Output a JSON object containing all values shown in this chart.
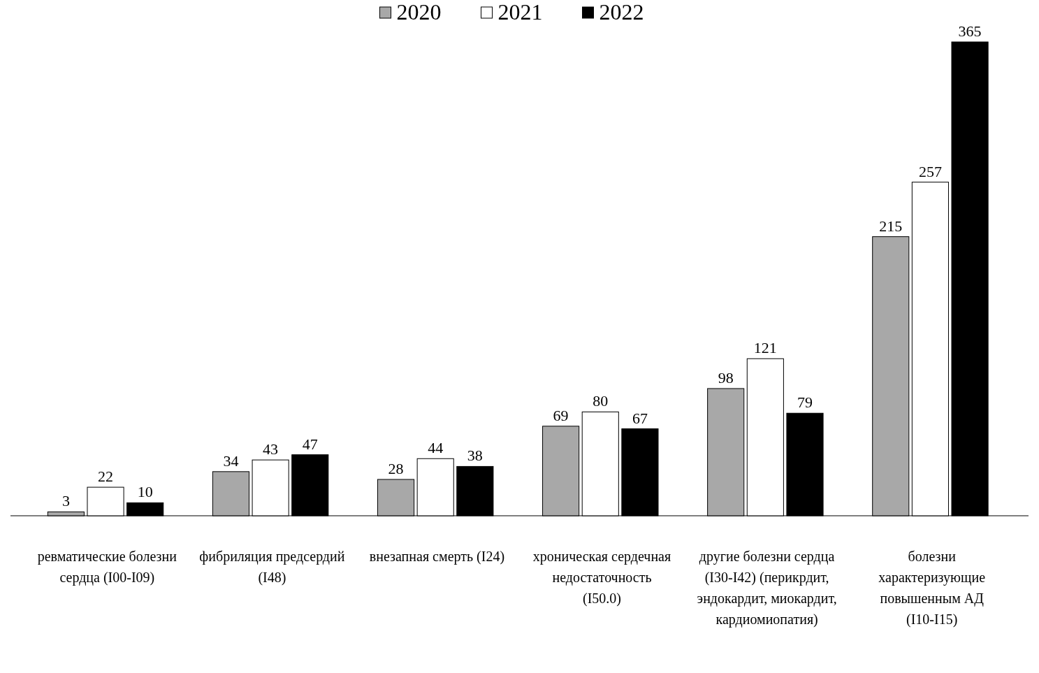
{
  "chart_data": {
    "type": "bar",
    "categories": [
      "ревматические болезни сердца (I00-I09)",
      "фибриляция предсердий (I48)",
      "внезапная смерть (I24)",
      "хроническая сердечная недостаточность (I50.0)",
      "другие болезни сердца (I30-I42) (перикрдит, эндокардит, миокардит, кардиомиопатия)",
      "болезни характеризующие повышенным АД (I10-I15)"
    ],
    "series": [
      {
        "name": "2020",
        "color": "#a8a8a8",
        "values": [
          3,
          34,
          28,
          69,
          98,
          215
        ]
      },
      {
        "name": "2021",
        "color": "#ffffff",
        "values": [
          22,
          43,
          44,
          80,
          121,
          257
        ]
      },
      {
        "name": "2022",
        "color": "#000000",
        "values": [
          10,
          47,
          38,
          67,
          79,
          365
        ]
      }
    ],
    "data_labels": true,
    "legend": "top",
    "grid": false
  }
}
